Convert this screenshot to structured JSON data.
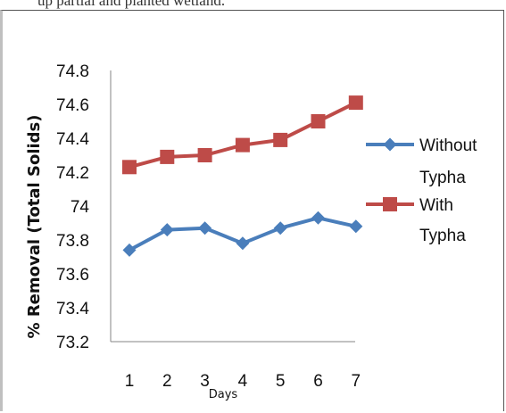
{
  "page": {
    "top_text": "up partial and planted wetland."
  },
  "colors": {
    "series_without": "#4a7ebb",
    "series_with": "#be4b48",
    "axis": "#868686"
  },
  "chart_data": {
    "type": "line",
    "title": "",
    "xlabel": "Days",
    "ylabel": "% Removal (Total Solids)",
    "x": [
      1,
      2,
      3,
      4,
      5,
      6,
      7
    ],
    "ylim": [
      73.2,
      74.8
    ],
    "yticks": [
      "73.2",
      "73.4",
      "73.6",
      "73.8",
      "74",
      "74.2",
      "74.4",
      "74.6",
      "74.8"
    ],
    "grid": false,
    "legend_position": "right",
    "series": [
      {
        "name": "Without Typha",
        "name_lines": [
          "Without",
          "Typha"
        ],
        "marker": "diamond",
        "values": [
          73.74,
          73.86,
          73.87,
          73.78,
          73.87,
          73.93,
          73.88
        ]
      },
      {
        "name": "With Typha",
        "name_lines": [
          "With",
          "Typha"
        ],
        "marker": "square",
        "values": [
          74.23,
          74.29,
          74.3,
          74.36,
          74.39,
          74.5,
          74.61
        ]
      }
    ]
  }
}
